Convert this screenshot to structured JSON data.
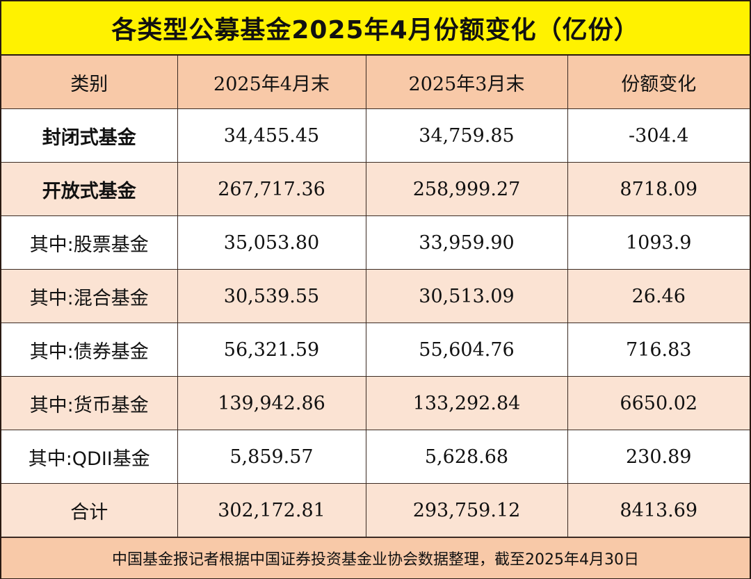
{
  "title": "各类型公募基金2025年4月份额变化（亿份）",
  "headers": {
    "category": "类别",
    "april": "2025年4月末",
    "march": "2025年3月末",
    "change": "份额变化"
  },
  "footer": "中国基金报记者根据中国证券投资基金业协会数据整理，截至2025年4月30日",
  "colors": {
    "title_bg": "#fff200",
    "header_bg": "#f8c9a8",
    "row_alt_bg": "#fbe3d3",
    "border": "#3a2a22"
  },
  "chart_data": {
    "type": "table",
    "title": "各类型公募基金2025年4月份额变化（亿份）",
    "columns": [
      "类别",
      "2025年4月末",
      "2025年3月末",
      "份额变化"
    ],
    "rows": [
      {
        "category": "封闭式基金",
        "april": "34,455.45",
        "march": "34,759.85",
        "change": "-304.4"
      },
      {
        "category": "开放式基金",
        "april": "267,717.36",
        "march": "258,999.27",
        "change": "8718.09"
      },
      {
        "category": "其中:股票基金",
        "april": "35,053.80",
        "march": "33,959.90",
        "change": "1093.9"
      },
      {
        "category": "其中:混合基金",
        "april": "30,539.55",
        "march": "30,513.09",
        "change": "26.46"
      },
      {
        "category": "其中:债券基金",
        "april": "56,321.59",
        "march": "55,604.76",
        "change": "716.83"
      },
      {
        "category": "其中:货币基金",
        "april": "139,942.86",
        "march": "133,292.84",
        "change": "6650.02"
      },
      {
        "category": "其中:QDII基金",
        "april": "5,859.57",
        "march": "5,628.68",
        "change": "230.89"
      },
      {
        "category": "合计",
        "april": "302,172.81",
        "march": "293,759.12",
        "change": "8413.69"
      }
    ]
  }
}
